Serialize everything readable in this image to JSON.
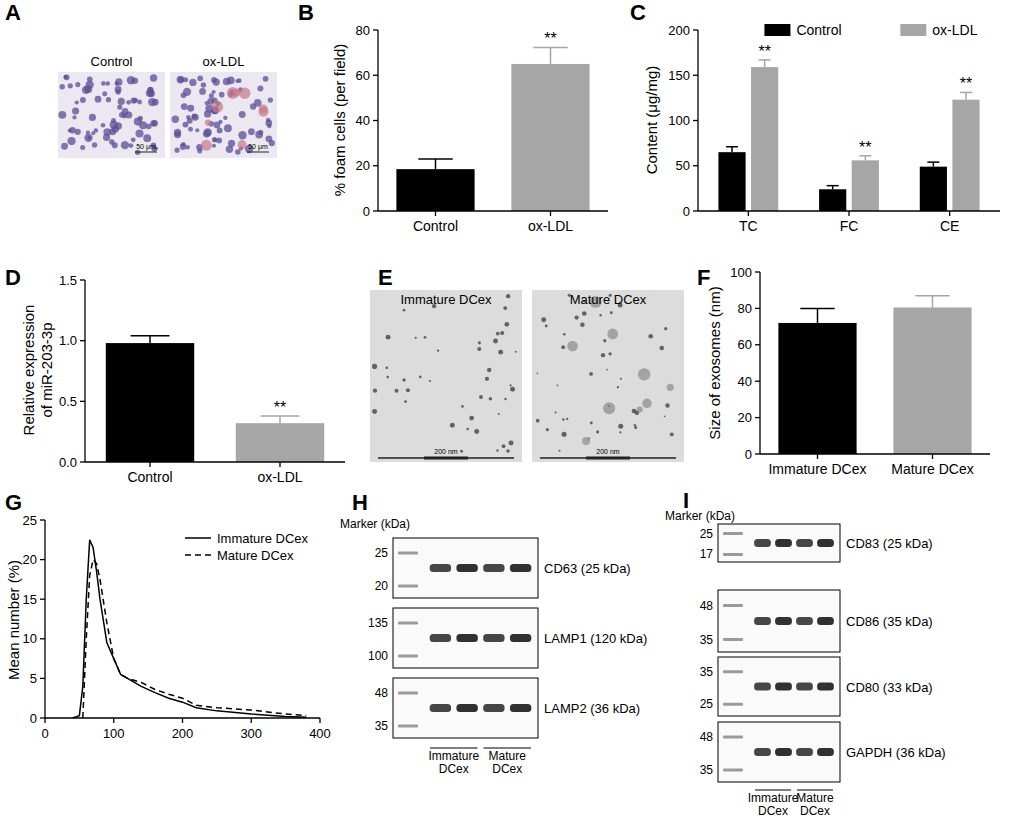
{
  "panel_labels": [
    "A",
    "B",
    "C",
    "D",
    "E",
    "F",
    "G",
    "H",
    "I"
  ],
  "micrographs": {
    "images": [
      {
        "label": "Control",
        "scale_bar": "50 μm"
      },
      {
        "label": "ox-LDL",
        "scale_bar": "50 μm"
      }
    ]
  },
  "chart_data": [
    {
      "type": "bar",
      "y_label": "% foam cells (per field)",
      "categories": [
        "Control",
        "ox-LDL"
      ],
      "values": [
        18.5,
        65
      ],
      "errors": [
        4.5,
        7.3
      ],
      "significance": [
        null,
        "**"
      ],
      "colors": [
        "#000000",
        "#a6a6a6"
      ],
      "ylim": [
        0,
        80
      ],
      "yticks": [
        0,
        20,
        40,
        60,
        80
      ]
    },
    {
      "type": "bar",
      "y_label": "Content (μg/mg)",
      "categories": [
        "TC",
        "FC",
        "CE"
      ],
      "series": [
        {
          "name": "Control",
          "color": "#000000",
          "values": [
            65,
            24,
            49
          ],
          "errors": [
            6,
            4,
            5
          ],
          "significance": [
            null,
            null,
            null
          ]
        },
        {
          "name": "ox-LDL",
          "color": "#a6a6a6",
          "values": [
            159,
            56,
            123
          ],
          "errors": [
            8,
            5,
            8
          ],
          "significance": [
            "**",
            "**",
            "**"
          ]
        }
      ],
      "ylim": [
        0,
        200
      ],
      "yticks": [
        0,
        50,
        100,
        150,
        200
      ],
      "legend": "top"
    },
    {
      "type": "bar",
      "y_label": "Relative expression of miR-203-3p",
      "categories": [
        "Control",
        "ox-LDL"
      ],
      "values": [
        0.98,
        0.32
      ],
      "errors": [
        0.06,
        0.06
      ],
      "significance": [
        null,
        "**"
      ],
      "colors": [
        "#000000",
        "#a6a6a6"
      ],
      "ylim": [
        0,
        1.5
      ],
      "yticks": [
        {
          "value": 0,
          "label": "0.0"
        },
        0.5,
        {
          "value": 1,
          "label": "1.0"
        },
        1.5
      ]
    },
    {
      "type": "bar",
      "y_label": "Size of exosomes (nm)",
      "categories": [
        "Immature DCex",
        "Mature DCex"
      ],
      "values": [
        72,
        80.5
      ],
      "errors": [
        8,
        6.5
      ],
      "colors": [
        "#000000",
        "#a6a6a6"
      ],
      "ylim": [
        0,
        100
      ],
      "yticks": [
        0,
        20,
        40,
        60,
        80,
        100
      ]
    },
    {
      "type": "line",
      "y_label": "Mean number (%)",
      "x": [
        40,
        50,
        55,
        60,
        65,
        70,
        75,
        80,
        90,
        100,
        110,
        120,
        140,
        160,
        180,
        200,
        220,
        250,
        300,
        350,
        380
      ],
      "series": [
        {
          "name": "Immature DCex",
          "color": "#000000",
          "line_style": "solid",
          "values": [
            0,
            0.3,
            4,
            15,
            22.5,
            21.5,
            18.5,
            15,
            9.5,
            7.5,
            5.5,
            5,
            4,
            3.2,
            2.5,
            2,
            1.3,
            0.9,
            0.5,
            0.2,
            0.1
          ]
        },
        {
          "name": "Mature DCex",
          "color": "#000000",
          "line_style": "dashed",
          "values": [
            null,
            null,
            0,
            10,
            18,
            20,
            19.5,
            17.5,
            12,
            7.5,
            5.5,
            5,
            4.5,
            3.6,
            3,
            2.5,
            1.6,
            1.3,
            1,
            0.5,
            0.3
          ]
        }
      ],
      "xlim": [
        0,
        400
      ],
      "xticks": [
        0,
        100,
        200,
        300,
        400
      ],
      "ylim": [
        0,
        25
      ],
      "yticks": [
        0,
        5,
        10,
        15,
        20,
        25
      ],
      "legend": "top-right"
    }
  ],
  "tem": {
    "images": [
      {
        "label": "Immature DCex",
        "scale_bar": "200 nm"
      },
      {
        "label": "Mature DCex",
        "scale_bar": "200 nm"
      }
    ]
  },
  "blots": [
    {
      "marker_title": "Marker (kDa)",
      "groups": [
        "Immature DCex",
        "Mature DCex"
      ],
      "rows": [
        {
          "protein": "CD63 (25 kDa)",
          "markers": [
            25,
            20
          ]
        },
        {
          "protein": "LAMP1 (120 kDa)",
          "markers": [
            135,
            100
          ]
        },
        {
          "protein": "LAMP2 (36 kDa)",
          "markers": [
            48,
            35
          ]
        }
      ]
    },
    {
      "marker_title": "Marker (kDa)",
      "groups": [
        "Immature DCex",
        "Mature DCex"
      ],
      "rows": [
        {
          "protein": "CD83 (25 kDa)",
          "markers": [
            25,
            17
          ]
        },
        {
          "protein": "CD86 (35 kDa)",
          "markers": [
            48,
            35
          ]
        },
        {
          "protein": "CD80 (33 kDa)",
          "markers": [
            35,
            25
          ]
        },
        {
          "protein": "GAPDH (36 kDa)",
          "markers": [
            48,
            35
          ]
        }
      ]
    }
  ]
}
